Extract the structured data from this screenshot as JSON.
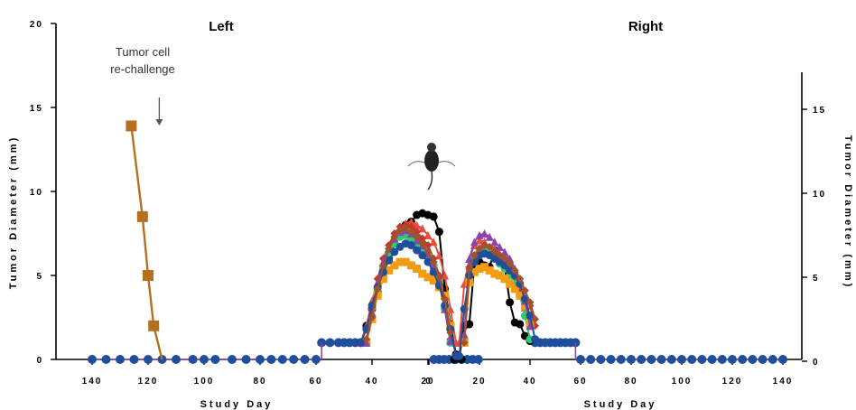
{
  "chart_data": {
    "type": "line",
    "panels": {
      "left": {
        "title": "Left",
        "xdir": "reversed"
      },
      "right": {
        "title": "Right",
        "xdir": "forward"
      }
    },
    "x_ticks_left": [
      140,
      120,
      100,
      80,
      60,
      40,
      20
    ],
    "x_ticks_right": [
      0,
      20,
      40,
      60,
      80,
      100,
      120,
      140
    ],
    "xlabel": "Study Day",
    "ylabel": "Tumor Diameter (mm)",
    "yticks_left": [
      0,
      5,
      10,
      15,
      20
    ],
    "yticks_right": [
      0,
      5,
      10,
      15
    ],
    "ylim": [
      0,
      20
    ],
    "annotation": {
      "line1": "Tumor cell",
      "line2": "re-challenge",
      "x_day": 116
    },
    "series": [
      {
        "color": "#000000",
        "marker": "circle",
        "left": [
          [
            44,
            1
          ],
          [
            42,
            2
          ],
          [
            40,
            3
          ],
          [
            38,
            4
          ],
          [
            36,
            5
          ],
          [
            34,
            6
          ],
          [
            32,
            6.9
          ],
          [
            30,
            7.5
          ],
          [
            28,
            8
          ],
          [
            26,
            8.2
          ],
          [
            24,
            8.6
          ],
          [
            22,
            8.7
          ],
          [
            20,
            8.6
          ],
          [
            18,
            8.5
          ],
          [
            16,
            7.6
          ],
          [
            14,
            4.2
          ],
          [
            12,
            2.1
          ],
          [
            10,
            0.3
          ],
          [
            8,
            0
          ]
        ],
        "right": [
          [
            10,
            0
          ],
          [
            12,
            0.1
          ],
          [
            14,
            2
          ],
          [
            16,
            2.1
          ],
          [
            18,
            5.7
          ],
          [
            20,
            5.8
          ],
          [
            22,
            5.6
          ],
          [
            24,
            5.5
          ],
          [
            26,
            6.5
          ],
          [
            28,
            5.8
          ],
          [
            30,
            5.5
          ],
          [
            32,
            3.4
          ],
          [
            34,
            2.2
          ],
          [
            36,
            2.1
          ],
          [
            38,
            1.4
          ],
          [
            40,
            1.1
          ]
        ]
      },
      {
        "color": "#e74c3c",
        "marker": "triangle",
        "left": [
          [
            44,
            1
          ],
          [
            42,
            2
          ],
          [
            40,
            3.5
          ],
          [
            38,
            4.6
          ],
          [
            36,
            5.5
          ],
          [
            34,
            6.5
          ],
          [
            32,
            7.3
          ],
          [
            30,
            7.8
          ],
          [
            28,
            8.1
          ],
          [
            26,
            8.2
          ],
          [
            24,
            8
          ],
          [
            22,
            7.8
          ],
          [
            20,
            7.4
          ],
          [
            18,
            7
          ],
          [
            16,
            6.2
          ],
          [
            14,
            5
          ],
          [
            12,
            3
          ],
          [
            10,
            1
          ]
        ],
        "right": [
          [
            12,
            1
          ],
          [
            14,
            4.5
          ],
          [
            16,
            6
          ],
          [
            18,
            6.8
          ],
          [
            20,
            7.1
          ],
          [
            22,
            7
          ],
          [
            24,
            6.7
          ],
          [
            26,
            6.6
          ],
          [
            28,
            6.3
          ],
          [
            30,
            6
          ],
          [
            32,
            5.5
          ],
          [
            34,
            5
          ],
          [
            36,
            4.2
          ],
          [
            38,
            3.1
          ],
          [
            40,
            2
          ]
        ]
      },
      {
        "color": "#c0392b",
        "marker": "diamond",
        "left": [
          [
            42,
            1.2
          ],
          [
            40,
            3
          ],
          [
            38,
            4.8
          ],
          [
            36,
            6
          ],
          [
            34,
            6.8
          ],
          [
            32,
            7.5
          ],
          [
            30,
            7.9
          ],
          [
            28,
            8
          ],
          [
            26,
            7.9
          ],
          [
            24,
            7.6
          ],
          [
            22,
            7.2
          ],
          [
            20,
            6.8
          ],
          [
            18,
            6
          ],
          [
            16,
            5
          ],
          [
            14,
            3.2
          ],
          [
            12,
            1.2
          ]
        ],
        "right": [
          [
            14,
            1
          ],
          [
            16,
            5.5
          ],
          [
            18,
            6.2
          ],
          [
            20,
            6.5
          ],
          [
            22,
            6.4
          ],
          [
            24,
            6.2
          ],
          [
            26,
            6
          ],
          [
            28,
            5.8
          ],
          [
            30,
            5.6
          ],
          [
            32,
            5.3
          ],
          [
            34,
            4.8
          ],
          [
            36,
            4
          ],
          [
            38,
            3.6
          ],
          [
            40,
            3.2
          ],
          [
            42,
            2
          ]
        ]
      },
      {
        "color": "#2ecc71",
        "marker": "circle",
        "left": [
          [
            42,
            1
          ],
          [
            40,
            2.5
          ],
          [
            38,
            4.2
          ],
          [
            36,
            5.5
          ],
          [
            34,
            6.3
          ],
          [
            32,
            6.9
          ],
          [
            30,
            7.3
          ],
          [
            28,
            7.4
          ],
          [
            26,
            7.2
          ],
          [
            24,
            6.9
          ],
          [
            22,
            6.6
          ],
          [
            20,
            6.2
          ],
          [
            18,
            5.6
          ],
          [
            16,
            4.6
          ],
          [
            14,
            3
          ],
          [
            12,
            1
          ]
        ],
        "right": [
          [
            14,
            1.2
          ],
          [
            16,
            5
          ],
          [
            18,
            6
          ],
          [
            20,
            6.4
          ],
          [
            22,
            6.5
          ],
          [
            24,
            6.3
          ],
          [
            26,
            6
          ],
          [
            28,
            5.7
          ],
          [
            30,
            5.4
          ],
          [
            32,
            5
          ],
          [
            34,
            4.5
          ],
          [
            36,
            3.8
          ],
          [
            38,
            2.6
          ],
          [
            40,
            1.2
          ]
        ]
      },
      {
        "color": "#f39c12",
        "marker": "square",
        "left": [
          [
            42,
            1
          ],
          [
            40,
            2.4
          ],
          [
            38,
            3.8
          ],
          [
            36,
            4.8
          ],
          [
            34,
            5.3
          ],
          [
            32,
            5.6
          ],
          [
            30,
            5.8
          ],
          [
            28,
            5.8
          ],
          [
            26,
            5.6
          ],
          [
            24,
            5.4
          ],
          [
            22,
            5.1
          ],
          [
            20,
            4.9
          ],
          [
            18,
            4.7
          ],
          [
            16,
            4.3
          ],
          [
            14,
            3.8
          ],
          [
            12,
            2
          ]
        ],
        "right": [
          [
            14,
            1
          ],
          [
            16,
            4.6
          ],
          [
            18,
            5.2
          ],
          [
            20,
            5.4
          ],
          [
            22,
            5.5
          ],
          [
            24,
            5.3
          ],
          [
            26,
            5.1
          ],
          [
            28,
            5
          ],
          [
            30,
            4.8
          ],
          [
            32,
            4.5
          ],
          [
            34,
            4.2
          ],
          [
            36,
            3.8
          ],
          [
            38,
            3.2
          ],
          [
            40,
            2.1
          ]
        ]
      },
      {
        "color": "#8e44ad",
        "marker": "triangle",
        "left": [
          [
            42,
            1
          ],
          [
            40,
            2.8
          ],
          [
            38,
            4.5
          ],
          [
            36,
            5.8
          ],
          [
            34,
            6.6
          ],
          [
            32,
            7.2
          ],
          [
            30,
            7.6
          ],
          [
            28,
            7.7
          ],
          [
            26,
            7.5
          ],
          [
            24,
            7.1
          ],
          [
            22,
            6.8
          ],
          [
            20,
            6.3
          ],
          [
            18,
            5.6
          ],
          [
            16,
            4.7
          ],
          [
            14,
            3
          ],
          [
            12,
            1.1
          ]
        ],
        "right": [
          [
            14,
            1.5
          ],
          [
            16,
            6
          ],
          [
            18,
            7
          ],
          [
            20,
            7.4
          ],
          [
            22,
            7.5
          ],
          [
            24,
            7.3
          ],
          [
            26,
            7
          ],
          [
            28,
            6.7
          ],
          [
            30,
            6.4
          ],
          [
            32,
            6
          ],
          [
            34,
            5.4
          ],
          [
            36,
            4.6
          ],
          [
            38,
            3.5
          ],
          [
            40,
            2
          ]
        ]
      },
      {
        "color": "#1f4e9c",
        "marker": "circle",
        "left": [
          [
            44,
            1
          ],
          [
            42,
            1.8
          ],
          [
            40,
            3.2
          ],
          [
            38,
            4.3
          ],
          [
            36,
            5.2
          ],
          [
            34,
            5.9
          ],
          [
            32,
            6.4
          ],
          [
            30,
            6.7
          ],
          [
            28,
            6.9
          ],
          [
            26,
            6.8
          ],
          [
            24,
            6.5
          ],
          [
            22,
            6.2
          ],
          [
            20,
            5.8
          ],
          [
            18,
            5.2
          ],
          [
            16,
            4.4
          ],
          [
            14,
            3.2
          ],
          [
            12,
            1.8
          ],
          [
            10,
            0.2
          ]
        ],
        "right": [
          [
            12,
            0.2
          ],
          [
            14,
            3
          ],
          [
            16,
            5
          ],
          [
            18,
            5.8
          ],
          [
            20,
            6.2
          ],
          [
            22,
            6.3
          ],
          [
            24,
            6.2
          ],
          [
            26,
            6
          ],
          [
            28,
            5.8
          ],
          [
            30,
            5.6
          ],
          [
            32,
            5.3
          ],
          [
            34,
            5
          ],
          [
            36,
            4.5
          ],
          [
            38,
            3.6
          ],
          [
            40,
            2.6
          ],
          [
            42,
            1.2
          ]
        ]
      },
      {
        "color": "#a0522d",
        "marker": "diamond",
        "left": [
          [
            42,
            1.2
          ],
          [
            40,
            2.5
          ],
          [
            38,
            4.2
          ],
          [
            36,
            5.6
          ],
          [
            34,
            6.6
          ],
          [
            32,
            7.3
          ],
          [
            30,
            7.7
          ],
          [
            28,
            7.8
          ],
          [
            26,
            7.6
          ],
          [
            24,
            7.3
          ],
          [
            22,
            6.9
          ],
          [
            20,
            6.4
          ],
          [
            18,
            5.8
          ],
          [
            16,
            4.9
          ],
          [
            14,
            3.6
          ],
          [
            12,
            1.6
          ]
        ],
        "right": [
          [
            14,
            1
          ],
          [
            16,
            5.4
          ],
          [
            18,
            6.2
          ],
          [
            20,
            6.6
          ],
          [
            22,
            6.8
          ],
          [
            24,
            6.7
          ],
          [
            26,
            6.4
          ],
          [
            28,
            6.2
          ],
          [
            30,
            6
          ],
          [
            32,
            5.7
          ],
          [
            34,
            5.3
          ],
          [
            36,
            4.8
          ],
          [
            38,
            4.1
          ],
          [
            40,
            3.4
          ],
          [
            42,
            2.4
          ]
        ]
      }
    ],
    "baseline": {
      "color": "#1f4e9c",
      "x_left": [
        140,
        135,
        130,
        125,
        120,
        115,
        110,
        104,
        100,
        96,
        90,
        85,
        80,
        76,
        72,
        68,
        64,
        60
      ],
      "x_right": [
        60,
        64,
        68,
        72,
        76,
        80,
        84,
        88,
        92,
        96,
        100,
        104,
        108,
        112,
        116,
        120,
        124,
        128,
        132,
        136,
        140
      ],
      "x_mid": [
        10,
        8,
        6,
        4,
        2,
        2,
        4,
        6,
        8,
        10
      ]
    },
    "plateau": {
      "y": 1,
      "x_left": [
        58,
        55,
        52,
        50,
        48,
        46,
        44
      ],
      "x_right": [
        42,
        44,
        46,
        48,
        50,
        52,
        54,
        56,
        58
      ]
    },
    "rechallenge_series": {
      "color": "#b5701f",
      "marker": "square",
      "points": [
        [
          126,
          13.9
        ],
        [
          122,
          8.5
        ],
        [
          120,
          5
        ],
        [
          118,
          2
        ],
        [
          115,
          0
        ]
      ]
    }
  }
}
